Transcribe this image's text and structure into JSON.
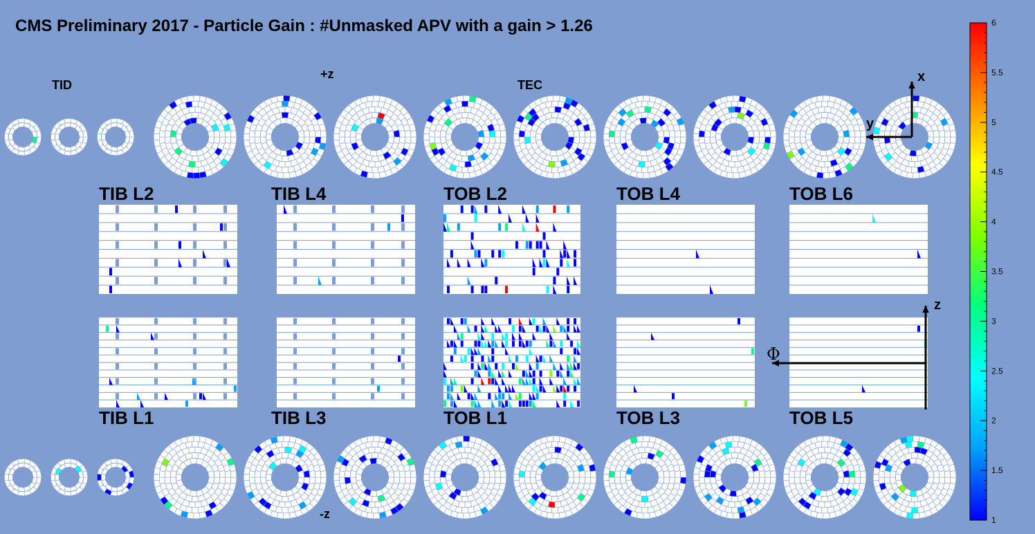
{
  "chart_data": {
    "type": "heatmap",
    "title": "CMS Preliminary 2017  -  Particle Gain : #Unmasked APV with a gain > 1.26",
    "colorbar": {
      "min": 1,
      "max": 6,
      "ticks": [
        "1",
        "1.5",
        "2",
        "2.5",
        "3",
        "3.5",
        "4",
        "4.5",
        "5",
        "5.5",
        "6"
      ],
      "palette": [
        "#0000ff",
        "#00a0ff",
        "#00ffff",
        "#00ff80",
        "#80ff00",
        "#ffff00",
        "#ff8000",
        "#ff0000"
      ]
    },
    "labels": {
      "tid": "TID",
      "tec": "TEC",
      "plus_z": "+z",
      "minus_z": "-z",
      "axis_x": "x",
      "axis_y": "y",
      "axis_z": "z",
      "axis_phi": "Φ"
    },
    "barrel_layers": [
      {
        "name": "TIB L2",
        "row": "top",
        "hits": "low"
      },
      {
        "name": "TIB L4",
        "row": "top",
        "hits": "low"
      },
      {
        "name": "TOB L2",
        "row": "top",
        "hits": "high"
      },
      {
        "name": "TOB L4",
        "row": "top",
        "hits": "none"
      },
      {
        "name": "TOB L6",
        "row": "top",
        "hits": "none"
      },
      {
        "name": "TIB L1",
        "row": "bottom",
        "hits": "medium"
      },
      {
        "name": "TIB L3",
        "row": "bottom",
        "hits": "none"
      },
      {
        "name": "TOB L1",
        "row": "bottom",
        "hits": "very-high"
      },
      {
        "name": "TOB L3",
        "row": "bottom",
        "hits": "low"
      },
      {
        "name": "TOB L5",
        "row": "bottom",
        "hits": "none"
      }
    ],
    "tid_disks_per_side": 3,
    "tec_disks_per_side": 9
  }
}
